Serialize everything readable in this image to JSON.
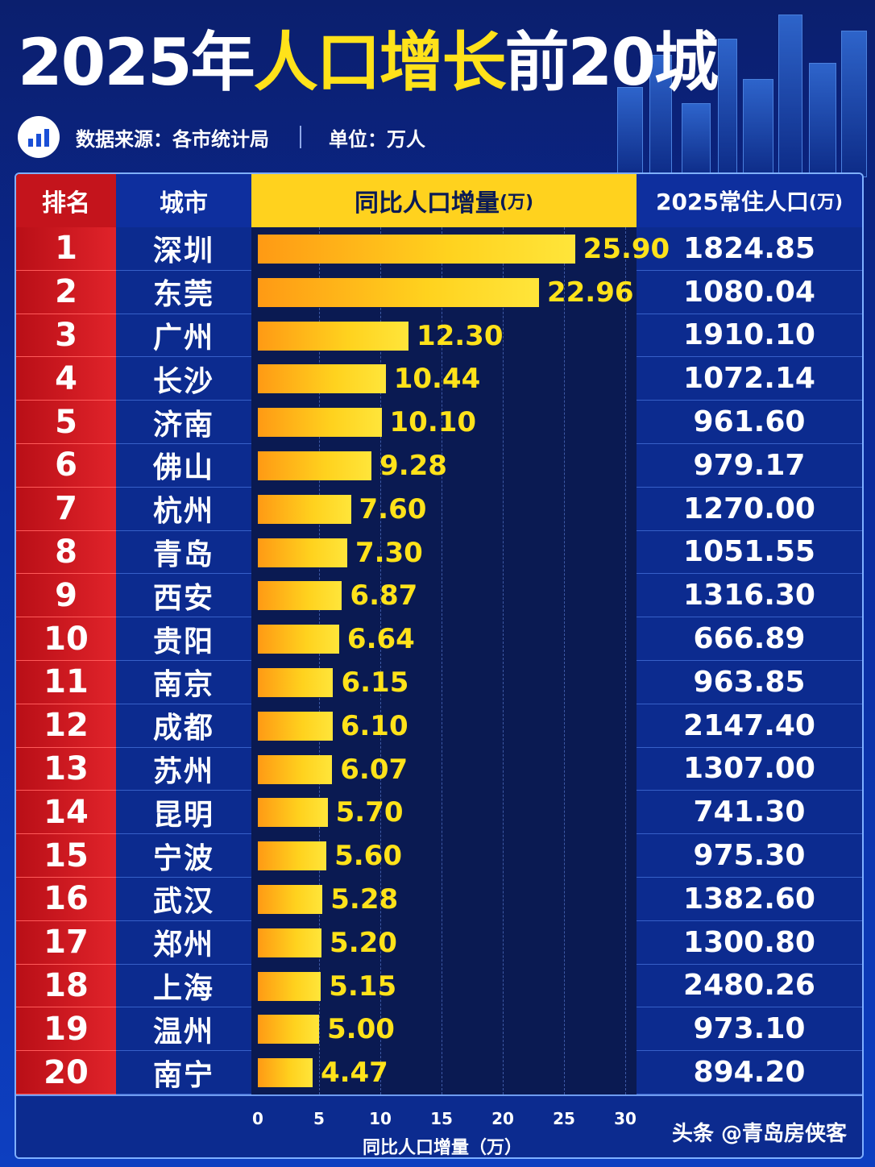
{
  "title_part1": "2025年",
  "title_part2": "人口增长",
  "title_part3": "前20城",
  "source": "数据来源：各市统计局",
  "unit": "单位：万人",
  "headers": {
    "rank": "排名",
    "city": "城市",
    "growth": "同比人口增量",
    "growth_unit": "(万)",
    "pop": "2025常住人口",
    "pop_unit": "(万)"
  },
  "axis_label": "同比人口增量（万）",
  "watermark": "头条 @青岛房侠客",
  "colors": {
    "rank_red": "#c4141c",
    "accent_yellow": "#ffd21e",
    "panel_blue": "#0c2b8f"
  },
  "chart_data": {
    "type": "bar",
    "orientation": "horizontal",
    "xlabel": "同比人口增量（万）",
    "xlim": [
      0,
      30
    ],
    "xticks": [
      "0",
      "5",
      "10",
      "15",
      "20",
      "25",
      "30"
    ],
    "rows": [
      {
        "rank": "1",
        "city": "深圳",
        "growth": 25.9,
        "growth_label": "25.90",
        "pop": "1824.85"
      },
      {
        "rank": "2",
        "city": "东莞",
        "growth": 22.96,
        "growth_label": "22.96",
        "pop": "1080.04"
      },
      {
        "rank": "3",
        "city": "广州",
        "growth": 12.3,
        "growth_label": "12.30",
        "pop": "1910.10"
      },
      {
        "rank": "4",
        "city": "长沙",
        "growth": 10.44,
        "growth_label": "10.44",
        "pop": "1072.14"
      },
      {
        "rank": "5",
        "city": "济南",
        "growth": 10.1,
        "growth_label": "10.10",
        "pop": "961.60"
      },
      {
        "rank": "6",
        "city": "佛山",
        "growth": 9.28,
        "growth_label": "9.28",
        "pop": "979.17"
      },
      {
        "rank": "7",
        "city": "杭州",
        "growth": 7.6,
        "growth_label": "7.60",
        "pop": "1270.00"
      },
      {
        "rank": "8",
        "city": "青岛",
        "growth": 7.3,
        "growth_label": "7.30",
        "pop": "1051.55"
      },
      {
        "rank": "9",
        "city": "西安",
        "growth": 6.87,
        "growth_label": "6.87",
        "pop": "1316.30"
      },
      {
        "rank": "10",
        "city": "贵阳",
        "growth": 6.64,
        "growth_label": "6.64",
        "pop": "666.89"
      },
      {
        "rank": "11",
        "city": "南京",
        "growth": 6.15,
        "growth_label": "6.15",
        "pop": "963.85"
      },
      {
        "rank": "12",
        "city": "成都",
        "growth": 6.1,
        "growth_label": "6.10",
        "pop": "2147.40"
      },
      {
        "rank": "13",
        "city": "苏州",
        "growth": 6.07,
        "growth_label": "6.07",
        "pop": "1307.00"
      },
      {
        "rank": "14",
        "city": "昆明",
        "growth": 5.7,
        "growth_label": "5.70",
        "pop": "741.30"
      },
      {
        "rank": "15",
        "city": "宁波",
        "growth": 5.6,
        "growth_label": "5.60",
        "pop": "975.30"
      },
      {
        "rank": "16",
        "city": "武汉",
        "growth": 5.28,
        "growth_label": "5.28",
        "pop": "1382.60"
      },
      {
        "rank": "17",
        "city": "郑州",
        "growth": 5.2,
        "growth_label": "5.20",
        "pop": "1300.80"
      },
      {
        "rank": "18",
        "city": "上海",
        "growth": 5.15,
        "growth_label": "5.15",
        "pop": "2480.26"
      },
      {
        "rank": "19",
        "city": "温州",
        "growth": 5.0,
        "growth_label": "5.00",
        "pop": "973.10"
      },
      {
        "rank": "20",
        "city": "南宁",
        "growth": 4.47,
        "growth_label": "4.47",
        "pop": "894.20"
      }
    ]
  }
}
